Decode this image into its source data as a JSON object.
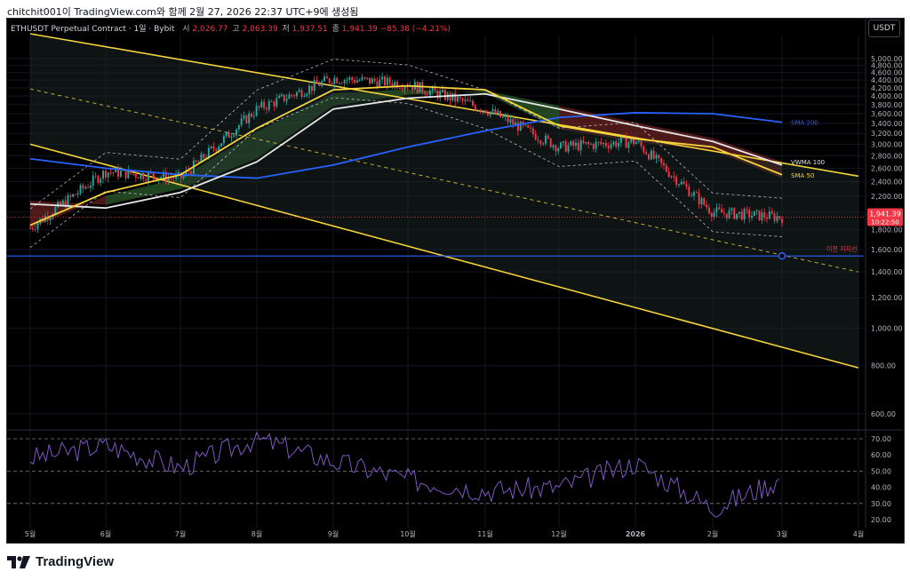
{
  "header": {
    "snapshot_line": "chitchit001이 TradingView.com와 함께 2월 27, 2026 22:37 UTC+9에 생성됨"
  },
  "symbol": {
    "title": "ETHUSDT Perpetual Contract · 1일 · Bybit",
    "open_label": "시",
    "open": "2,026.77",
    "high_label": "고",
    "high": "2,063.39",
    "low_label": "저",
    "low": "1,937.51",
    "close_label": "종",
    "close": "1,941.39",
    "change": "−85.38 (−4.21%)"
  },
  "currency": "USDT",
  "price_badge": {
    "price": "1,941.39",
    "countdown": "10:22:50"
  },
  "colors": {
    "up": "#26a69a",
    "down": "#f23645",
    "channel": "#f5d33a",
    "sma50": "#f5d33a",
    "sma200": "#2962ff",
    "vwma100": "#e6e6e6",
    "rsi": "#7e57c2",
    "support": "#2962ff",
    "cloud_bull": "#3a7a3a",
    "cloud_bear": "#8a2c2c"
  },
  "chart_data": [
    {
      "type": "line",
      "subtype": "candlestick",
      "yscale": "log",
      "ylim": [
        600,
        5200
      ],
      "y_ticks": [
        "600.00",
        "800.00",
        "1,000.00",
        "1,200.00",
        "1,400.00",
        "1,600.00",
        "1,800.00",
        "2,000.00",
        "2,200.00",
        "2,400.00",
        "2,600.00",
        "2,800.00",
        "3,000.00",
        "3,200.00",
        "3,400.00",
        "3,600.00",
        "3,800.00",
        "4,000.00",
        "4,200.00",
        "4,400.00",
        "4,600.00",
        "4,800.00",
        "5,000.00"
      ],
      "x_ticks": [
        "5월",
        "6월",
        "7월",
        "8월",
        "9월",
        "10월",
        "11월",
        "12월",
        "2026",
        "2월",
        "3월",
        "4월"
      ],
      "series": [
        {
          "name": "SMA 200",
          "x": [
            "2025-05",
            "2025-06",
            "2025-07",
            "2025-08",
            "2025-09",
            "2025-10",
            "2025-11",
            "2025-12",
            "2026-01",
            "2026-02",
            "2026-03"
          ],
          "values": [
            2750,
            2600,
            2500,
            2450,
            2650,
            2950,
            3250,
            3520,
            3620,
            3600,
            3420
          ]
        },
        {
          "name": "VWMA 100",
          "x": [
            "2025-05",
            "2025-06",
            "2025-07",
            "2025-08",
            "2025-09",
            "2025-10",
            "2025-11",
            "2025-12",
            "2026-01",
            "2026-02",
            "2026-03"
          ],
          "values": [
            2100,
            2050,
            2250,
            2700,
            3700,
            3950,
            4050,
            3700,
            3350,
            3050,
            2650
          ]
        },
        {
          "name": "SMA 50",
          "x": [
            "2025-05",
            "2025-06",
            "2025-07",
            "2025-08",
            "2025-09",
            "2025-10",
            "2025-11",
            "2025-12",
            "2026-01",
            "2026-02",
            "2026-03"
          ],
          "values": [
            1850,
            2250,
            2500,
            3300,
            4150,
            4250,
            4150,
            3350,
            3100,
            2950,
            2500
          ]
        },
        {
          "name": "Close",
          "x": [
            "2025-05",
            "2025-06",
            "2025-07",
            "2025-08",
            "2025-09",
            "2025-10",
            "2025-11",
            "2025-12",
            "2026-01",
            "2026-02",
            "2026-03"
          ],
          "values": [
            1820,
            2550,
            2450,
            3700,
            4450,
            4300,
            3700,
            2950,
            3050,
            2000,
            1941
          ]
        }
      ],
      "channel": {
        "upper": [
          [
            "2025-05",
            5800
          ],
          [
            "2026-04",
            2480
          ]
        ],
        "lower": [
          [
            "2025-05",
            3000
          ],
          [
            "2026-04",
            790
          ]
        ]
      },
      "annotations": [
        "SMA 200",
        "VWMA 100",
        "SMA 50",
        "이전 지지선"
      ],
      "support_level": 1540
    },
    {
      "type": "line",
      "name": "RSI",
      "ylim": [
        15,
        75
      ],
      "y_ticks": [
        "20.00",
        "30.00",
        "40.00",
        "50.00",
        "60.00",
        "70.00"
      ],
      "bands": [
        30,
        50,
        70
      ],
      "x": [
        "2025-05",
        "2025-06",
        "2025-07",
        "2025-08",
        "2025-09",
        "2025-10",
        "2025-11",
        "2025-12",
        "2026-01",
        "2026-02",
        "2026-03"
      ],
      "values": [
        58,
        66,
        52,
        70,
        56,
        45,
        38,
        40,
        55,
        27,
        45
      ]
    }
  ],
  "footer": {
    "brand": "TradingView"
  }
}
